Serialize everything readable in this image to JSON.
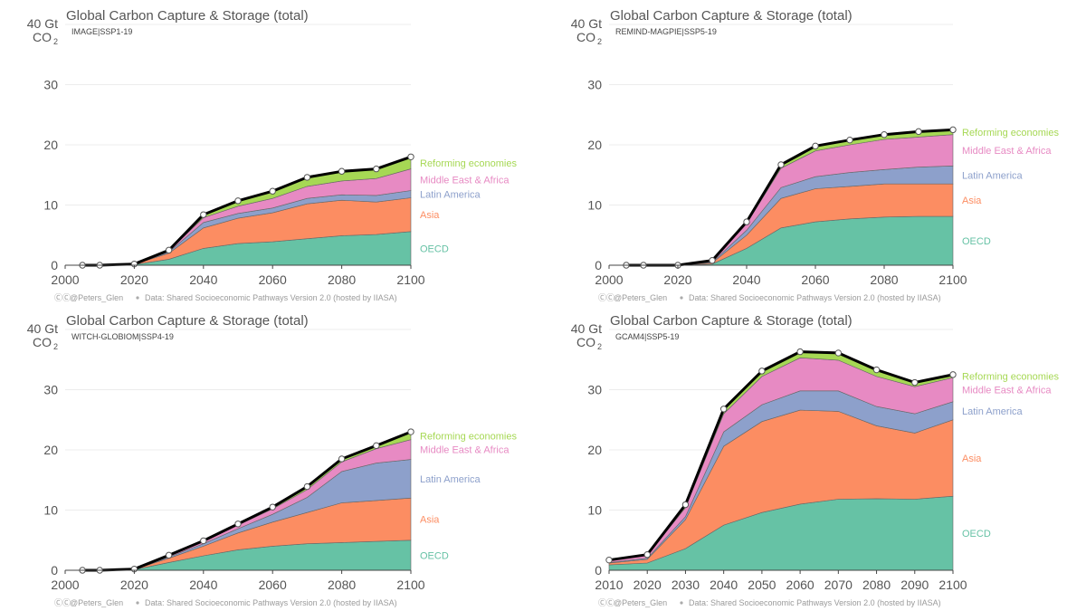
{
  "colors": {
    "OECD": "#66c2a5",
    "Asia": "#fc8d62",
    "Latin America": "#8da0cb",
    "Middle East & Africa": "#e78ac3",
    "Reforming economies": "#a6d854",
    "total": "#000000"
  },
  "chart_data": [
    {
      "type": "area",
      "title": "Global Carbon Capture & Storage (total)",
      "scenario": "IMAGE|SSP1-19",
      "ylabel": "40 Gt",
      "ylabel_line2": "CO",
      "ylabel_sub": "2",
      "ylim": [
        0,
        40
      ],
      "yticks": [
        "0",
        "10",
        "20",
        "30"
      ],
      "xlim": [
        2000,
        2100
      ],
      "xticks": [
        "2000",
        "2020",
        "2040",
        "2060",
        "2080",
        "2100"
      ],
      "x": [
        2005,
        2010,
        2020,
        2030,
        2040,
        2050,
        2060,
        2070,
        2080,
        2090,
        2100
      ],
      "series": [
        {
          "name": "OECD",
          "values": [
            0,
            0,
            0.1,
            1.0,
            2.8,
            3.6,
            3.9,
            4.4,
            4.9,
            5.1,
            5.6
          ]
        },
        {
          "name": "Asia",
          "values": [
            0,
            0,
            0.05,
            1.0,
            3.4,
            4.2,
            4.8,
            5.8,
            5.9,
            5.4,
            5.6
          ]
        },
        {
          "name": "Latin America",
          "values": [
            0,
            0,
            0.02,
            0.2,
            0.9,
            0.8,
            0.8,
            0.9,
            0.9,
            1.1,
            1.2
          ]
        },
        {
          "name": "Middle East & Africa",
          "values": [
            0,
            0,
            0.02,
            0.2,
            0.8,
            1.2,
            1.6,
            2.0,
            2.3,
            2.8,
            3.6
          ]
        },
        {
          "name": "Reforming economies",
          "values": [
            0,
            0,
            0.01,
            0.1,
            0.5,
            0.9,
            1.2,
            1.5,
            1.6,
            1.6,
            2.0
          ]
        }
      ],
      "footer": {
        "handle": "@Peters_Glen",
        "source": "Data: Shared Socioeconomic Pathways Version 2.0 (hosted by IIASA)"
      }
    },
    {
      "type": "area",
      "title": "Global Carbon Capture & Storage (total)",
      "scenario": "REMIND-MAGPIE|SSP5-19",
      "ylabel": "40 Gt",
      "ylabel_line2": "CO",
      "ylabel_sub": "2",
      "ylim": [
        0,
        40
      ],
      "yticks": [
        "0",
        "10",
        "20",
        "30"
      ],
      "xlim": [
        2000,
        2100
      ],
      "xticks": [
        "2000",
        "2020",
        "2040",
        "2060",
        "2080",
        "2100"
      ],
      "x": [
        2005,
        2010,
        2020,
        2030,
        2040,
        2050,
        2060,
        2070,
        2080,
        2090,
        2100
      ],
      "series": [
        {
          "name": "OECD",
          "values": [
            0,
            0,
            0,
            0.2,
            2.8,
            6.2,
            7.2,
            7.7,
            8.0,
            8.1,
            8.1
          ]
        },
        {
          "name": "Asia",
          "values": [
            0,
            0,
            0,
            0.2,
            2.2,
            4.9,
            5.5,
            5.4,
            5.5,
            5.4,
            5.4
          ]
        },
        {
          "name": "Latin America",
          "values": [
            0,
            0,
            0,
            0.1,
            0.8,
            1.8,
            2.0,
            2.3,
            2.4,
            2.8,
            3.0
          ]
        },
        {
          "name": "Middle East & Africa",
          "values": [
            0,
            0,
            0,
            0.2,
            1.1,
            3.2,
            4.3,
            4.6,
            5.0,
            5.0,
            5.2
          ]
        },
        {
          "name": "Reforming economies",
          "values": [
            0,
            0,
            0,
            0.1,
            0.3,
            0.6,
            0.8,
            0.8,
            0.8,
            0.9,
            0.8
          ]
        }
      ],
      "footer": {
        "handle": "@Peters_Glen",
        "source": "Data: Shared Socioeconomic Pathways Version 2.0 (hosted by IIASA)"
      }
    },
    {
      "type": "area",
      "title": "Global Carbon Capture & Storage (total)",
      "scenario": "WITCH-GLOBIOM|SSP4-19",
      "ylabel": "40 Gt",
      "ylabel_line2": "CO",
      "ylabel_sub": "2",
      "ylim": [
        0,
        40
      ],
      "yticks": [
        "0",
        "10",
        "20",
        "30"
      ],
      "xlim": [
        2000,
        2100
      ],
      "xticks": [
        "2000",
        "2020",
        "2040",
        "2060",
        "2080",
        "2100"
      ],
      "x": [
        2005,
        2010,
        2020,
        2030,
        2040,
        2050,
        2060,
        2070,
        2080,
        2090,
        2100
      ],
      "series": [
        {
          "name": "OECD",
          "values": [
            0,
            0,
            0.1,
            1.3,
            2.4,
            3.4,
            4.0,
            4.4,
            4.6,
            4.8,
            5.0
          ]
        },
        {
          "name": "Asia",
          "values": [
            0,
            0,
            0.05,
            0.7,
            1.6,
            2.8,
            4.0,
            5.2,
            6.6,
            6.8,
            7.0
          ]
        },
        {
          "name": "Latin America",
          "values": [
            0,
            0,
            0.02,
            0.2,
            0.4,
            0.7,
            1.3,
            2.5,
            5.2,
            6.2,
            6.4
          ]
        },
        {
          "name": "Middle East & Africa",
          "values": [
            0,
            0,
            0.02,
            0.2,
            0.4,
            0.6,
            0.9,
            1.3,
            1.6,
            2.4,
            3.3
          ]
        },
        {
          "name": "Reforming economies",
          "values": [
            0,
            0,
            0.01,
            0.1,
            0.1,
            0.2,
            0.3,
            0.5,
            0.5,
            0.5,
            1.3
          ]
        }
      ],
      "footer": {
        "handle": "@Peters_Glen",
        "source": "Data: Shared Socioeconomic Pathways Version 2.0 (hosted by IIASA)"
      }
    },
    {
      "type": "area",
      "title": "Global Carbon Capture & Storage (total)",
      "scenario": "GCAM4|SSP5-19",
      "ylabel": "40 Gt",
      "ylabel_line2": "CO",
      "ylabel_sub": "2",
      "ylim": [
        0,
        40
      ],
      "yticks": [
        "0",
        "10",
        "20",
        "30"
      ],
      "xlim": [
        2010,
        2100
      ],
      "xticks": [
        "2010",
        "2020",
        "2030",
        "2040",
        "2050",
        "2060",
        "2070",
        "2080",
        "2090",
        "2100"
      ],
      "x": [
        2010,
        2020,
        2030,
        2040,
        2050,
        2060,
        2070,
        2080,
        2090,
        2100
      ],
      "series": [
        {
          "name": "OECD",
          "values": [
            0.9,
            1.2,
            3.6,
            7.5,
            9.6,
            11.0,
            11.8,
            11.9,
            11.8,
            12.3
          ]
        },
        {
          "name": "Asia",
          "values": [
            0.3,
            0.6,
            4.8,
            13.1,
            15.1,
            15.6,
            14.6,
            12.1,
            11.0,
            12.7
          ]
        },
        {
          "name": "Latin America",
          "values": [
            0.1,
            0.2,
            0.5,
            2.4,
            2.8,
            3.2,
            3.4,
            3.2,
            3.2,
            3.0
          ]
        },
        {
          "name": "Middle East & Africa",
          "values": [
            0.3,
            0.5,
            1.5,
            3.0,
            4.7,
            5.5,
            5.1,
            5.0,
            4.5,
            4.0
          ]
        },
        {
          "name": "Reforming economies",
          "values": [
            0.1,
            0.1,
            0.5,
            0.8,
            0.9,
            1.0,
            1.2,
            1.1,
            0.7,
            0.5
          ]
        }
      ],
      "footer": {
        "handle": "@Peters_Glen",
        "source": "Data: Shared Socioeconomic Pathways Version 2.0 (hosted by IIASA)"
      }
    }
  ]
}
